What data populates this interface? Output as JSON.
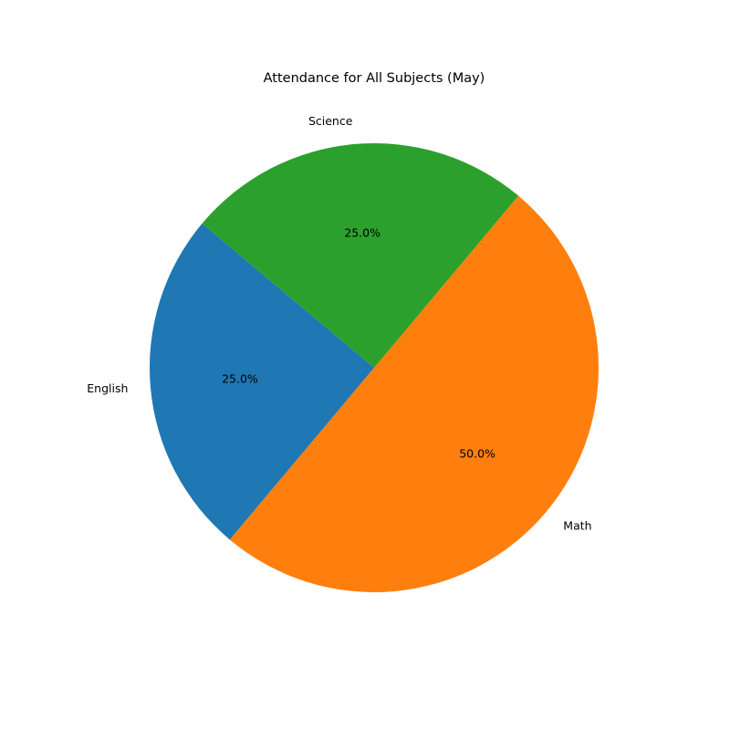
{
  "chart_data": {
    "type": "pie",
    "title": "Attendance for All Subjects (May)",
    "categories": [
      "English",
      "Math",
      "Science"
    ],
    "values": [
      25,
      50,
      25
    ],
    "percent_labels": [
      "25.0%",
      "50.0%",
      "25.0%"
    ],
    "colors": [
      "#1f77b4",
      "#ff7f0e",
      "#2ca02c"
    ],
    "start_angle_deg": 140,
    "direction": "counterclockwise"
  }
}
